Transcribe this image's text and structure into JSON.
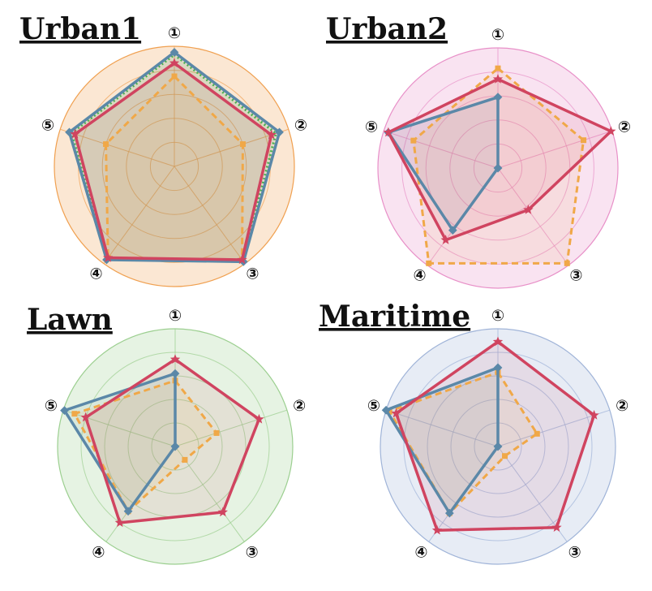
{
  "chart_data": [
    {
      "type": "radar",
      "title": "Urban1",
      "axes": [
        "①",
        "②",
        "③",
        "④",
        "⑤"
      ],
      "rmax": 1.0,
      "rings": 5,
      "background_color": "#f0a050",
      "series": [
        {
          "color": "#d04460",
          "style": "solid",
          "marker": "star",
          "values": [
            0.86,
            0.85,
            0.96,
            0.94,
            0.87
          ]
        },
        {
          "color": "#5b88a8",
          "style": "solid",
          "marker": "diamond",
          "values": [
            0.95,
            0.92,
            0.98,
            0.96,
            0.92
          ]
        },
        {
          "color": "#4caf50",
          "style": "dotted",
          "marker": "none",
          "values": [
            0.93,
            0.89,
            0.97,
            0.96,
            0.9
          ]
        },
        {
          "color": "#f0a848",
          "style": "dashed",
          "marker": "square",
          "values": [
            0.75,
            0.6,
            0.96,
            0.94,
            0.6
          ]
        }
      ]
    },
    {
      "type": "radar",
      "title": "Urban2",
      "axes": [
        "①",
        "②",
        "③",
        "④",
        "⑤"
      ],
      "rmax": 1.0,
      "rings": 5,
      "background_color": "#e890c8",
      "series": [
        {
          "color": "#d04460",
          "style": "solid",
          "marker": "star",
          "values": [
            0.74,
            0.99,
            0.43,
            0.74,
            0.96
          ]
        },
        {
          "color": "#5b88a8",
          "style": "solid",
          "marker": "diamond",
          "values": [
            0.59,
            0.0,
            0.0,
            0.64,
            0.96
          ]
        },
        {
          "color": "#f0a848",
          "style": "dashed",
          "marker": "square",
          "values": [
            0.83,
            0.75,
            0.98,
            0.98,
            0.74
          ]
        }
      ]
    },
    {
      "type": "radar",
      "title": "Lawn",
      "axes": [
        "①",
        "②",
        "③",
        "④",
        "⑤"
      ],
      "rmax": 1.0,
      "rings": 5,
      "background_color": "#9ccf90",
      "series": [
        {
          "color": "#d04460",
          "style": "solid",
          "marker": "star",
          "values": [
            0.74,
            0.75,
            0.69,
            0.8,
            0.8
          ]
        },
        {
          "color": "#5b88a8",
          "style": "solid",
          "marker": "diamond",
          "values": [
            0.62,
            0.0,
            0.0,
            0.68,
            0.99
          ]
        },
        {
          "color": "#f0a848",
          "style": "dashed",
          "marker": "square",
          "values": [
            0.56,
            0.37,
            0.14,
            0.68,
            0.9
          ]
        }
      ]
    },
    {
      "type": "radar",
      "title": "Maritime",
      "axes": [
        "①",
        "②",
        "③",
        "④",
        "⑤"
      ],
      "rmax": 1.0,
      "rings": 5,
      "background_color": "#a0b4d8",
      "series": [
        {
          "color": "#d04460",
          "style": "solid",
          "marker": "star",
          "values": [
            0.89,
            0.86,
            0.85,
            0.88,
            0.91
          ]
        },
        {
          "color": "#5b88a8",
          "style": "solid",
          "marker": "diamond",
          "values": [
            0.67,
            0.0,
            0.0,
            0.7,
            1.0
          ]
        },
        {
          "color": "#f0a848",
          "style": "dashed",
          "marker": "square",
          "values": [
            0.63,
            0.35,
            0.1,
            0.7,
            0.97
          ]
        }
      ]
    }
  ]
}
